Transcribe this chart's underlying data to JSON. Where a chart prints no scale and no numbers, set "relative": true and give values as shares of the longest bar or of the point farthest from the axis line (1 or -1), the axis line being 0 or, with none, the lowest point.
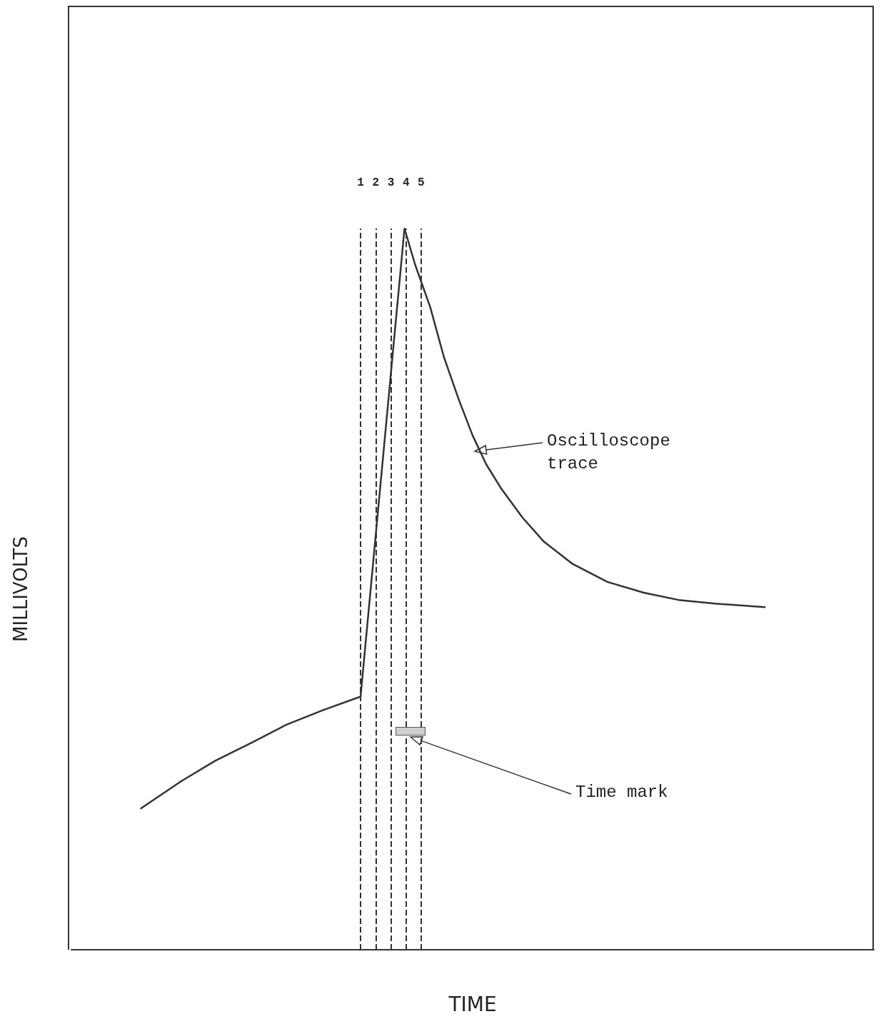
{
  "chart_data": {
    "type": "line",
    "relative": true,
    "xlabel": "TIME",
    "ylabel": "MILLIVOLTS",
    "xlim": [
      -18.1,
      34.9
    ],
    "xticks": [
      1,
      2,
      3,
      4,
      5
    ],
    "tick_labels": "x",
    "grid": false,
    "marker": "none",
    "line_style": "solid",
    "series": [
      {
        "color": "#333333",
        "x": [
          -13.5,
          -10.9,
          -8.6,
          -6.2,
          -3.9,
          -1.5,
          1.0,
          3.9,
          4.6,
          5.6,
          6.5,
          7.5,
          8.4,
          9.3,
          10.3,
          11.7,
          13.1,
          15.0,
          17.3,
          19.7,
          22.0,
          24.4,
          27.7
        ],
        "values": [
          0.196,
          0.233,
          0.262,
          0.287,
          0.312,
          0.332,
          0.351,
          1,
          0.95,
          0.891,
          0.822,
          0.762,
          0.713,
          0.673,
          0.639,
          0.599,
          0.566,
          0.535,
          0.51,
          0.495,
          0.485,
          0.48,
          0.475
        ]
      }
    ],
    "ref_lines": [
      {
        "axis": "x",
        "value": 1,
        "line_style": "dashed",
        "color": "#333333"
      },
      {
        "axis": "x",
        "value": 2,
        "line_style": "dashed",
        "color": "#333333"
      },
      {
        "axis": "x",
        "value": 3,
        "line_style": "dashed",
        "color": "#333333"
      },
      {
        "axis": "x",
        "value": 4,
        "line_style": "dashed",
        "color": "#333333"
      },
      {
        "axis": "x",
        "value": 5,
        "line_style": "dashed",
        "color": "#333333"
      }
    ],
    "annotations": [
      "Oscilloscope\ntrace",
      "Time mark"
    ]
  }
}
